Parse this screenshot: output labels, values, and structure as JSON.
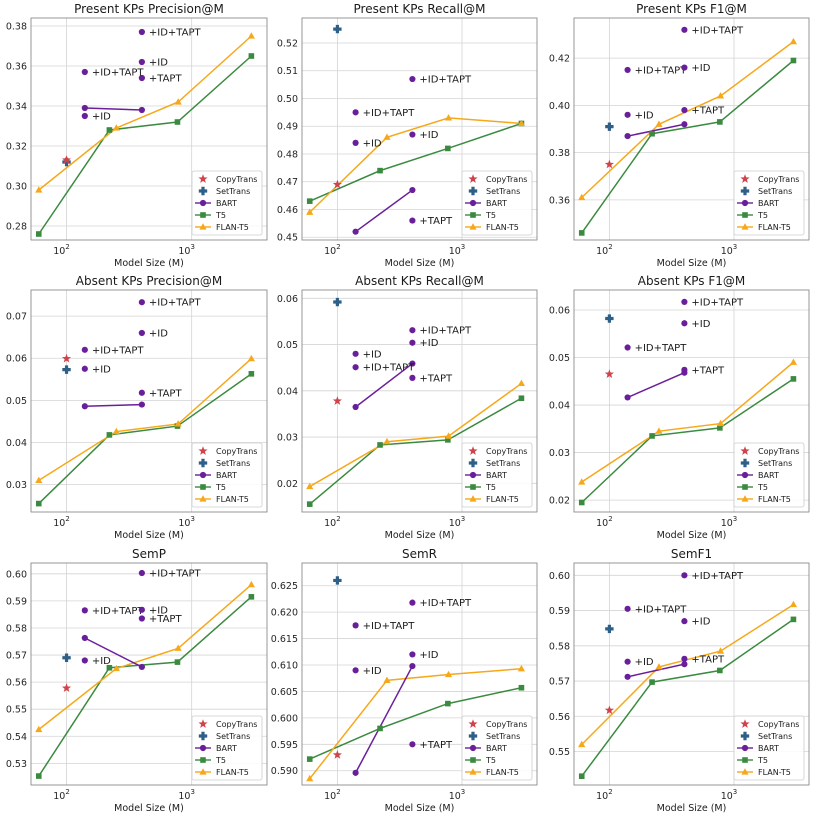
{
  "colors": {
    "copytrans": "#d1434b",
    "settrans": "#2e5f86",
    "bart": "#6a1f9a",
    "t5": "#3a8a3f",
    "flant5": "#f6a81a",
    "grid": "#d4d4d4",
    "panel_border": "#8c8c8c"
  },
  "chart_data": [
    {
      "type": "line",
      "title": "Present KPs Precision@M",
      "xlabel": "Model Size (M)",
      "ylim": [
        0.273,
        0.384
      ],
      "yticks": [
        "0.28",
        "0.30",
        "0.32",
        "0.34",
        "0.36",
        "0.38"
      ],
      "xscale": "log",
      "xlim": [
        52,
        4000
      ],
      "xticks": [
        {
          "v": 100,
          "base": "10",
          "exp": "2"
        },
        {
          "v": 1000,
          "base": "10",
          "exp": "3"
        }
      ],
      "legend": [
        "CopyTrans",
        "SetTrans",
        "BART",
        "T5",
        "FLAN-T5"
      ],
      "copytrans": {
        "x": [
          100
        ],
        "y": [
          0.313
        ]
      },
      "settrans": {
        "x": [
          100
        ],
        "y": [
          0.312
        ]
      },
      "bart_line": {
        "x": [
          140,
          400
        ],
        "y": [
          0.339,
          0.338
        ]
      },
      "t5": {
        "x": [
          60,
          220,
          770,
          3000
        ],
        "y": [
          0.276,
          0.328,
          0.332,
          0.365
        ]
      },
      "flant5": {
        "x": [
          60,
          250,
          780,
          3000
        ],
        "y": [
          0.298,
          0.329,
          0.342,
          0.375
        ]
      },
      "bart_points": [
        {
          "x": 140,
          "y": 0.357,
          "label": "+ID+TAPT"
        },
        {
          "x": 140,
          "y": 0.335,
          "label": "+ID"
        },
        {
          "x": 400,
          "y": 0.377,
          "label": "+ID+TAPT"
        },
        {
          "x": 400,
          "y": 0.362,
          "label": "+ID"
        },
        {
          "x": 400,
          "y": 0.354,
          "label": "+TAPT"
        }
      ]
    },
    {
      "type": "line",
      "title": "Present KPs Recall@M",
      "xlabel": "Model Size (M)",
      "ylim": [
        0.449,
        0.529
      ],
      "yticks": [
        "0.45",
        "0.46",
        "0.47",
        "0.48",
        "0.49",
        "0.50",
        "0.51",
        "0.52"
      ],
      "xscale": "log",
      "xlim": [
        52,
        4000
      ],
      "xticks": [
        {
          "v": 100,
          "base": "10",
          "exp": "2"
        },
        {
          "v": 1000,
          "base": "10",
          "exp": "3"
        }
      ],
      "legend": [
        "CopyTrans",
        "SetTrans",
        "BART",
        "T5",
        "FLAN-T5"
      ],
      "copytrans": {
        "x": [
          100
        ],
        "y": [
          0.469
        ]
      },
      "settrans": {
        "x": [
          100
        ],
        "y": [
          0.525
        ]
      },
      "bart_line": {
        "x": [
          140,
          400
        ],
        "y": [
          0.452,
          0.467
        ]
      },
      "t5": {
        "x": [
          60,
          220,
          770,
          3000
        ],
        "y": [
          0.463,
          0.474,
          0.482,
          0.491
        ]
      },
      "flant5": {
        "x": [
          60,
          250,
          780,
          3000
        ],
        "y": [
          0.459,
          0.486,
          0.493,
          0.491
        ]
      },
      "bart_points": [
        {
          "x": 140,
          "y": 0.495,
          "label": "+ID+TAPT"
        },
        {
          "x": 140,
          "y": 0.484,
          "label": "+ID"
        },
        {
          "x": 400,
          "y": 0.507,
          "label": "+ID+TAPT"
        },
        {
          "x": 400,
          "y": 0.487,
          "label": "+ID"
        },
        {
          "x": 400,
          "y": 0.456,
          "label": "+TAPT"
        }
      ]
    },
    {
      "type": "line",
      "title": "Present KPs F1@M",
      "xlabel": "Model Size (M)",
      "ylim": [
        0.343,
        0.437
      ],
      "yticks": [
        "0.36",
        "0.38",
        "0.40",
        "0.42"
      ],
      "xscale": "log",
      "xlim": [
        52,
        4000
      ],
      "xticks": [
        {
          "v": 100,
          "base": "10",
          "exp": "2"
        },
        {
          "v": 1000,
          "base": "10",
          "exp": "3"
        }
      ],
      "legend": [
        "CopyTrans",
        "SetTrans",
        "BART",
        "T5",
        "FLAN-T5"
      ],
      "copytrans": {
        "x": [
          100
        ],
        "y": [
          0.375
        ]
      },
      "settrans": {
        "x": [
          100
        ],
        "y": [
          0.391
        ]
      },
      "bart_line": {
        "x": [
          140,
          400
        ],
        "y": [
          0.387,
          0.392
        ]
      },
      "t5": {
        "x": [
          60,
          220,
          770,
          3000
        ],
        "y": [
          0.346,
          0.388,
          0.393,
          0.419
        ]
      },
      "flant5": {
        "x": [
          60,
          250,
          780,
          3000
        ],
        "y": [
          0.361,
          0.392,
          0.404,
          0.427
        ]
      },
      "bart_points": [
        {
          "x": 140,
          "y": 0.415,
          "label": "+ID+TAPT"
        },
        {
          "x": 140,
          "y": 0.396,
          "label": "+ID"
        },
        {
          "x": 400,
          "y": 0.432,
          "label": "+ID+TAPT"
        },
        {
          "x": 400,
          "y": 0.416,
          "label": "+ID"
        },
        {
          "x": 400,
          "y": 0.398,
          "label": "+TAPT"
        }
      ]
    },
    {
      "type": "line",
      "title": "Absent KPs Precision@M",
      "xlabel": "Model Size (M)",
      "ylim": [
        0.0235,
        0.0762
      ],
      "yticks": [
        "0.03",
        "0.04",
        "0.05",
        "0.06",
        "0.07"
      ],
      "xscale": "log",
      "xlim": [
        52,
        4000
      ],
      "xticks": [
        {
          "v": 100,
          "base": "10",
          "exp": "2"
        },
        {
          "v": 1000,
          "base": "10",
          "exp": "3"
        }
      ],
      "legend": [
        "CopyTrans",
        "SetTrans",
        "BART",
        "T5",
        "FLAN-T5"
      ],
      "copytrans": {
        "x": [
          100
        ],
        "y": [
          0.0599
        ]
      },
      "settrans": {
        "x": [
          100
        ],
        "y": [
          0.0573
        ]
      },
      "bart_line": {
        "x": [
          140,
          400
        ],
        "y": [
          0.0486,
          0.049
        ]
      },
      "t5": {
        "x": [
          60,
          220,
          770,
          3000
        ],
        "y": [
          0.0255,
          0.0418,
          0.0439,
          0.0563
        ]
      },
      "flant5": {
        "x": [
          60,
          250,
          780,
          3000
        ],
        "y": [
          0.031,
          0.0426,
          0.0444,
          0.0599
        ]
      },
      "bart_points": [
        {
          "x": 140,
          "y": 0.062,
          "label": "+ID+TAPT"
        },
        {
          "x": 140,
          "y": 0.0575,
          "label": "+ID"
        },
        {
          "x": 400,
          "y": 0.0733,
          "label": "+ID+TAPT"
        },
        {
          "x": 400,
          "y": 0.066,
          "label": "+ID"
        },
        {
          "x": 400,
          "y": 0.0518,
          "label": "+TAPT"
        }
      ]
    },
    {
      "type": "line",
      "title": "Absent KPs Recall@M",
      "xlabel": "Model Size (M)",
      "ylim": [
        0.0138,
        0.0618
      ],
      "yticks": [
        "0.02",
        "0.03",
        "0.04",
        "0.05",
        "0.06"
      ],
      "xscale": "log",
      "xlim": [
        52,
        4000
      ],
      "xticks": [
        {
          "v": 100,
          "base": "10",
          "exp": "2"
        },
        {
          "v": 1000,
          "base": "10",
          "exp": "3"
        }
      ],
      "legend": [
        "CopyTrans",
        "SetTrans",
        "BART",
        "T5",
        "FLAN-T5"
      ],
      "copytrans": {
        "x": [
          100
        ],
        "y": [
          0.0378
        ]
      },
      "settrans": {
        "x": [
          100
        ],
        "y": [
          0.0592
        ]
      },
      "bart_line": {
        "x": [
          140,
          400
        ],
        "y": [
          0.0365,
          0.0459
        ]
      },
      "t5": {
        "x": [
          60,
          220,
          770,
          3000
        ],
        "y": [
          0.0155,
          0.0283,
          0.0294,
          0.0384
        ]
      },
      "flant5": {
        "x": [
          60,
          250,
          780,
          3000
        ],
        "y": [
          0.0193,
          0.029,
          0.0302,
          0.0416
        ]
      },
      "bart_points": [
        {
          "x": 140,
          "y": 0.048,
          "label": "+ID"
        },
        {
          "x": 140,
          "y": 0.0451,
          "label": "+ID+TAPT"
        },
        {
          "x": 400,
          "y": 0.0531,
          "label": "+ID+TAPT"
        },
        {
          "x": 400,
          "y": 0.0504,
          "label": "+ID"
        },
        {
          "x": 400,
          "y": 0.0428,
          "label": "+TAPT"
        }
      ]
    },
    {
      "type": "line",
      "title": "Absent KPs F1@M",
      "xlabel": "Model Size (M)",
      "ylim": [
        0.0175,
        0.0642
      ],
      "yticks": [
        "0.02",
        "0.03",
        "0.04",
        "0.05",
        "0.06"
      ],
      "xscale": "log",
      "xlim": [
        52,
        4000
      ],
      "xticks": [
        {
          "v": 100,
          "base": "10",
          "exp": "2"
        },
        {
          "v": 1000,
          "base": "10",
          "exp": "3"
        }
      ],
      "legend": [
        "CopyTrans",
        "SetTrans",
        "BART",
        "T5",
        "FLAN-T5"
      ],
      "copytrans": {
        "x": [
          100
        ],
        "y": [
          0.0465
        ]
      },
      "settrans": {
        "x": [
          100
        ],
        "y": [
          0.0582
        ]
      },
      "bart_line": {
        "x": [
          140,
          400
        ],
        "y": [
          0.0416,
          0.0468
        ]
      },
      "t5": {
        "x": [
          60,
          220,
          770,
          3000
        ],
        "y": [
          0.0195,
          0.0335,
          0.0352,
          0.0455
        ]
      },
      "flant5": {
        "x": [
          60,
          250,
          780,
          3000
        ],
        "y": [
          0.0238,
          0.0345,
          0.0361,
          0.049
        ]
      },
      "bart_points": [
        {
          "x": 140,
          "y": 0.0521,
          "label": "+ID+TAPT"
        },
        {
          "x": 400,
          "y": 0.0617,
          "label": "+ID+TAPT"
        },
        {
          "x": 400,
          "y": 0.0572,
          "label": "+ID"
        },
        {
          "x": 400,
          "y": 0.0474,
          "label": "+TAPT"
        }
      ]
    },
    {
      "type": "line",
      "title": "SemP",
      "xlabel": "Model Size (M)",
      "ylim": [
        0.522,
        0.604
      ],
      "yticks": [
        "0.53",
        "0.54",
        "0.55",
        "0.56",
        "0.57",
        "0.58",
        "0.59",
        "0.60"
      ],
      "xscale": "log",
      "xlim": [
        52,
        4000
      ],
      "xticks": [
        {
          "v": 100,
          "base": "10",
          "exp": "2"
        },
        {
          "v": 1000,
          "base": "10",
          "exp": "3"
        }
      ],
      "legend": [
        "CopyTrans",
        "SetTrans",
        "BART",
        "T5",
        "FLAN-T5"
      ],
      "copytrans": {
        "x": [
          100
        ],
        "y": [
          0.5578
        ]
      },
      "settrans": {
        "x": [
          100
        ],
        "y": [
          0.569
        ]
      },
      "bart_line": {
        "x": [
          140,
          400
        ],
        "y": [
          0.5763,
          0.5656
        ]
      },
      "t5": {
        "x": [
          60,
          220,
          770,
          3000
        ],
        "y": [
          0.5253,
          0.5653,
          0.5674,
          0.5915
        ]
      },
      "flant5": {
        "x": [
          60,
          250,
          780,
          3000
        ],
        "y": [
          0.5425,
          0.565,
          0.5725,
          0.596
        ]
      },
      "bart_points": [
        {
          "x": 140,
          "y": 0.5865,
          "label": "+ID+TAPT"
        },
        {
          "x": 140,
          "y": 0.568,
          "label": "+ID"
        },
        {
          "x": 400,
          "y": 0.6003,
          "label": "+ID+TAPT"
        },
        {
          "x": 400,
          "y": 0.5867,
          "label": "+ID"
        },
        {
          "x": 400,
          "y": 0.5835,
          "label": "+TAPT"
        }
      ]
    },
    {
      "type": "line",
      "title": "SemR",
      "xlabel": "Model Size (M)",
      "ylim": [
        0.5873,
        0.6293
      ],
      "yticks": [
        "0.590",
        "0.595",
        "0.600",
        "0.605",
        "0.610",
        "0.615",
        "0.620",
        "0.625"
      ],
      "xscale": "log",
      "xlim": [
        52,
        4000
      ],
      "xticks": [
        {
          "v": 100,
          "base": "10",
          "exp": "2"
        },
        {
          "v": 1000,
          "base": "10",
          "exp": "3"
        }
      ],
      "legend": [
        "CopyTrans",
        "SetTrans",
        "BART",
        "T5",
        "FLAN-T5"
      ],
      "copytrans": {
        "x": [
          100
        ],
        "y": [
          0.593
        ]
      },
      "settrans": {
        "x": [
          100
        ],
        "y": [
          0.626
        ]
      },
      "bart_line": {
        "x": [
          140,
          400
        ],
        "y": [
          0.5896,
          0.6098
        ]
      },
      "t5": {
        "x": [
          60,
          220,
          770,
          3000
        ],
        "y": [
          0.5922,
          0.598,
          0.6027,
          0.6057
        ]
      },
      "flant5": {
        "x": [
          60,
          250,
          780,
          3000
        ],
        "y": [
          0.5885,
          0.6071,
          0.6082,
          0.6093
        ]
      },
      "bart_points": [
        {
          "x": 140,
          "y": 0.6175,
          "label": "+ID+TAPT"
        },
        {
          "x": 140,
          "y": 0.609,
          "label": "+ID"
        },
        {
          "x": 400,
          "y": 0.6218,
          "label": "+ID+TAPT"
        },
        {
          "x": 400,
          "y": 0.612,
          "label": "+ID"
        },
        {
          "x": 400,
          "y": 0.595,
          "label": "+TAPT"
        }
      ]
    },
    {
      "type": "line",
      "title": "SemF1",
      "xlabel": "Model Size (M)",
      "ylim": [
        0.5405,
        0.6035
      ],
      "yticks": [
        "0.55",
        "0.56",
        "0.57",
        "0.58",
        "0.59",
        "0.60"
      ],
      "xscale": "log",
      "xlim": [
        52,
        4000
      ],
      "xticks": [
        {
          "v": 100,
          "base": "10",
          "exp": "2"
        },
        {
          "v": 1000,
          "base": "10",
          "exp": "3"
        }
      ],
      "legend": [
        "CopyTrans",
        "SetTrans",
        "BART",
        "T5",
        "FLAN-T5"
      ],
      "copytrans": {
        "x": [
          100
        ],
        "y": [
          0.5617
        ]
      },
      "settrans": {
        "x": [
          100
        ],
        "y": [
          0.5848
        ]
      },
      "bart_line": {
        "x": [
          140,
          400
        ],
        "y": [
          0.5712,
          0.5748
        ]
      },
      "t5": {
        "x": [
          60,
          220,
          770,
          3000
        ],
        "y": [
          0.543,
          0.5697,
          0.573,
          0.5875
        ]
      },
      "flant5": {
        "x": [
          60,
          250,
          780,
          3000
        ],
        "y": [
          0.552,
          0.574,
          0.5785,
          0.5917
        ]
      },
      "bart_points": [
        {
          "x": 140,
          "y": 0.5905,
          "label": "+ID+TAPT"
        },
        {
          "x": 140,
          "y": 0.5755,
          "label": "+ID"
        },
        {
          "x": 400,
          "y": 0.6,
          "label": "+ID+TAPT"
        },
        {
          "x": 400,
          "y": 0.587,
          "label": "+ID"
        },
        {
          "x": 400,
          "y": 0.5763,
          "label": "+TAPT"
        }
      ]
    }
  ]
}
